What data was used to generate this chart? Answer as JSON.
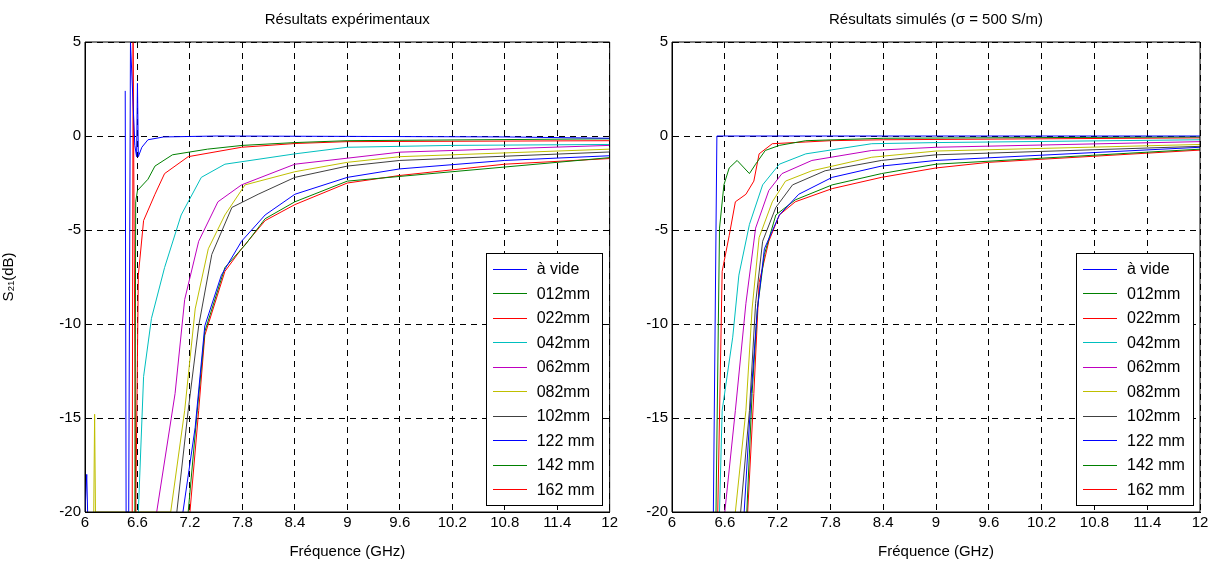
{
  "chart_data": [
    {
      "type": "line",
      "title": "Résultats expérimentaux",
      "xlabel": "Fréquence (GHz)",
      "ylabel": "S₂₁(dB)",
      "xlim": [
        6,
        12
      ],
      "ylim": [
        -20,
        5
      ],
      "xticks": [
        6,
        6.6,
        7.2,
        7.8,
        8.4,
        9,
        9.6,
        10.2,
        10.8,
        11.4,
        12
      ],
      "yticks": [
        -20,
        -15,
        -10,
        -5,
        0,
        5
      ],
      "grid": true,
      "legend": "bottom right",
      "marker": "none",
      "series": [
        {
          "name": "à vide",
          "color": "#0000ff",
          "x": [
            6,
            6.02,
            6.03,
            6.45,
            6.46,
            6.47,
            6.5,
            6.52,
            6.57,
            6.59,
            6.6,
            6.61,
            6.65,
            6.72,
            6.9,
            7.5,
            9,
            10.8,
            12
          ],
          "values": [
            -20,
            -18,
            -20,
            null,
            2.4,
            -20,
            -20,
            5,
            -0.5,
            -1.1,
            2.8,
            -1.1,
            -0.6,
            -0.2,
            -0.05,
            0,
            -0.02,
            -0.05,
            -0.12
          ]
        },
        {
          "name": "012mm",
          "color": "#008000",
          "x": [
            6.57,
            6.58,
            6.6,
            6.72,
            6.8,
            7,
            7.4,
            7.8,
            8.4,
            9,
            12
          ],
          "values": [
            -20,
            -3.5,
            -2.9,
            -2.3,
            -1.6,
            -1,
            -0.7,
            -0.5,
            -0.35,
            -0.25,
            -0.15
          ]
        },
        {
          "name": "022mm",
          "color": "#ff0000",
          "x": [
            6.54,
            6.55,
            6.56,
            6.58,
            6.61,
            6.67,
            6.8,
            6.91,
            7.18,
            7.79,
            8.4,
            9,
            12
          ],
          "values": [
            -20,
            5,
            5,
            -20,
            -7.4,
            -4.5,
            -3.1,
            -2,
            -1.1,
            -0.6,
            -0.4,
            -0.3,
            -0.25
          ]
        },
        {
          "name": "042mm",
          "color": "#00bfbf",
          "x": [
            6.61,
            6.67,
            6.76,
            6.91,
            7.1,
            7.33,
            7.6,
            8.4,
            9,
            10.2,
            12
          ],
          "values": [
            -20,
            -12.8,
            -9.7,
            -7,
            -4.2,
            -2.2,
            -1.5,
            -0.95,
            -0.6,
            -0.5,
            -0.45
          ]
        },
        {
          "name": "062mm",
          "color": "#bf00bf",
          "x": [
            6.82,
            7.03,
            7.14,
            7.3,
            7.52,
            7.79,
            8.4,
            9.6,
            12
          ],
          "values": [
            -20,
            -13.7,
            -8.7,
            -5.6,
            -3.5,
            -2.6,
            -1.5,
            -0.86,
            -0.5
          ]
        },
        {
          "name": "082mm",
          "color": "#bfbf00",
          "x": [
            6.1,
            6.11,
            6.12,
            6.98,
            7.14,
            7.26,
            7.41,
            7.6,
            7.83,
            8.4,
            9,
            9.6,
            12
          ],
          "values": [
            -20,
            -14.8,
            -20,
            -20,
            -14.6,
            -9.2,
            -6,
            -4.2,
            -2.6,
            -1.9,
            -1.4,
            -1.1,
            -0.7
          ]
        },
        {
          "name": "102mm",
          "color": "#404040",
          "x": [
            7.05,
            7.18,
            7.3,
            7.45,
            7.68,
            7.98,
            8.4,
            9,
            9.6,
            12
          ],
          "values": [
            -20,
            -14.6,
            -10.1,
            -6.3,
            -3.8,
            -3.1,
            -2.2,
            -1.6,
            -1.3,
            -0.85
          ]
        },
        {
          "name": "122 mm",
          "color": "#0000ff",
          "x": [
            7.12,
            7.26,
            7.37,
            7.56,
            7.79,
            8.06,
            8.4,
            9,
            9.6,
            10.8,
            12
          ],
          "values": [
            -20,
            -15.5,
            -10.1,
            -7.4,
            -5.6,
            -4.2,
            -3.1,
            -2.2,
            -1.75,
            -1.3,
            -1.05
          ]
        },
        {
          "name": "142 mm",
          "color": "#008000",
          "x": [
            7.18,
            7.28,
            7.37,
            7.6,
            7.83,
            8.06,
            8.4,
            9,
            12
          ],
          "values": [
            -20,
            -14.8,
            -10.4,
            -7,
            -5.8,
            -4.4,
            -3.5,
            -2.4,
            -1.15
          ]
        },
        {
          "name": "162 mm",
          "color": "#ff0000",
          "x": [
            7.2,
            7.3,
            7.37,
            7.6,
            7.79,
            8.06,
            8.4,
            9,
            9.6,
            10.8,
            12
          ],
          "values": [
            -20,
            -14.6,
            -10.6,
            -7.2,
            -6,
            -4.5,
            -3.65,
            -2.5,
            -2.1,
            -1.5,
            -1.2
          ]
        }
      ]
    },
    {
      "type": "line",
      "title": "Résultats simulés (σ = 500 S/m)",
      "xlabel": "Fréquence (GHz)",
      "xlim": [
        6,
        12
      ],
      "ylim": [
        -20,
        5
      ],
      "xticks": [
        6,
        6.6,
        7.2,
        7.8,
        8.4,
        9,
        9.6,
        10.2,
        10.8,
        11.4,
        12
      ],
      "yticks": [
        -20,
        -15,
        -10,
        -5,
        0,
        5
      ],
      "grid": true,
      "legend": "bottom right",
      "marker": "none",
      "series": [
        {
          "name": "à vide",
          "color": "#0000ff",
          "x": [
            6.47,
            6.51,
            12
          ],
          "values": [
            -20,
            0,
            0
          ]
        },
        {
          "name": "012mm",
          "color": "#008000",
          "x": [
            6.5,
            6.54,
            6.59,
            6.65,
            6.74,
            6.82,
            6.88,
            6.95,
            7.06,
            7.22,
            7.52,
            8.4,
            12
          ],
          "values": [
            -20,
            -4.9,
            -2.6,
            -1.7,
            -1.3,
            -1.7,
            -2,
            -1.5,
            -0.77,
            -0.5,
            -0.25,
            -0.12,
            -0.05
          ]
        },
        {
          "name": "022mm",
          "color": "#ff0000",
          "x": [
            6.52,
            6.57,
            6.65,
            6.72,
            6.84,
            6.93,
            6.99,
            7.14,
            7.8,
            8.4,
            12
          ],
          "values": [
            -20,
            -7.2,
            -5.3,
            -3.5,
            -3.1,
            -2.4,
            -0.95,
            -0.41,
            -0.25,
            -0.2,
            -0.1
          ]
        },
        {
          "name": "042mm",
          "color": "#00bfbf",
          "x": [
            6.54,
            6.57,
            6.69,
            6.76,
            6.88,
            7.03,
            7.22,
            7.52,
            8.27,
            9,
            12
          ],
          "values": [
            -20,
            -14.6,
            -10.7,
            -7.4,
            -4.7,
            -2.6,
            -1.5,
            -0.95,
            -0.41,
            -0.35,
            -0.2
          ]
        },
        {
          "name": "062mm",
          "color": "#bf00bf",
          "x": [
            6.6,
            6.72,
            6.84,
            6.95,
            7.1,
            7.25,
            7.59,
            8.27,
            9,
            12
          ],
          "values": [
            -20,
            -14.6,
            -8.9,
            -4.9,
            -2.9,
            -2,
            -1.3,
            -0.77,
            -0.6,
            -0.3
          ]
        },
        {
          "name": "082mm",
          "color": "#bfbf00",
          "x": [
            6.72,
            6.84,
            6.91,
            6.99,
            7.14,
            7.29,
            7.59,
            8.27,
            9,
            12
          ],
          "values": [
            -20,
            -14.6,
            -9.2,
            -5.4,
            -3.5,
            -2.4,
            -1.85,
            -1.13,
            -0.8,
            -0.45
          ]
        },
        {
          "name": "102mm",
          "color": "#404040",
          "x": [
            6.78,
            6.88,
            6.95,
            7.03,
            7.18,
            7.37,
            7.74,
            8.38,
            9,
            12
          ],
          "values": [
            -20,
            -14.6,
            -8.9,
            -5.6,
            -3.8,
            -2.6,
            -1.85,
            -1.3,
            -1,
            -0.55
          ]
        },
        {
          "name": "122 mm",
          "color": "#0000ff",
          "x": [
            6.82,
            6.9,
            6.97,
            7.05,
            7.22,
            7.44,
            7.82,
            8.38,
            9,
            12
          ],
          "values": [
            -20,
            -13.7,
            -9.2,
            -6,
            -4.2,
            -3.1,
            -2.2,
            -1.6,
            -1.3,
            -0.6
          ]
        },
        {
          "name": "142 mm",
          "color": "#008000",
          "x": [
            6.85,
            6.91,
            6.97,
            7.05,
            7.18,
            7.4,
            7.82,
            8.38,
            9,
            12
          ],
          "values": [
            -20,
            -13.7,
            -9.2,
            -6.3,
            -4.2,
            -3.4,
            -2.6,
            -2,
            -1.5,
            -0.7
          ]
        },
        {
          "name": "162 mm",
          "color": "#ff0000",
          "x": [
            6.86,
            6.93,
            6.99,
            7.1,
            7.22,
            7.4,
            7.82,
            8.38,
            9,
            9.6,
            12
          ],
          "values": [
            -20,
            -13.7,
            -7.8,
            -5.6,
            -4.2,
            -3.5,
            -2.8,
            -2.2,
            -1.7,
            -1.4,
            -0.75
          ]
        }
      ]
    }
  ]
}
